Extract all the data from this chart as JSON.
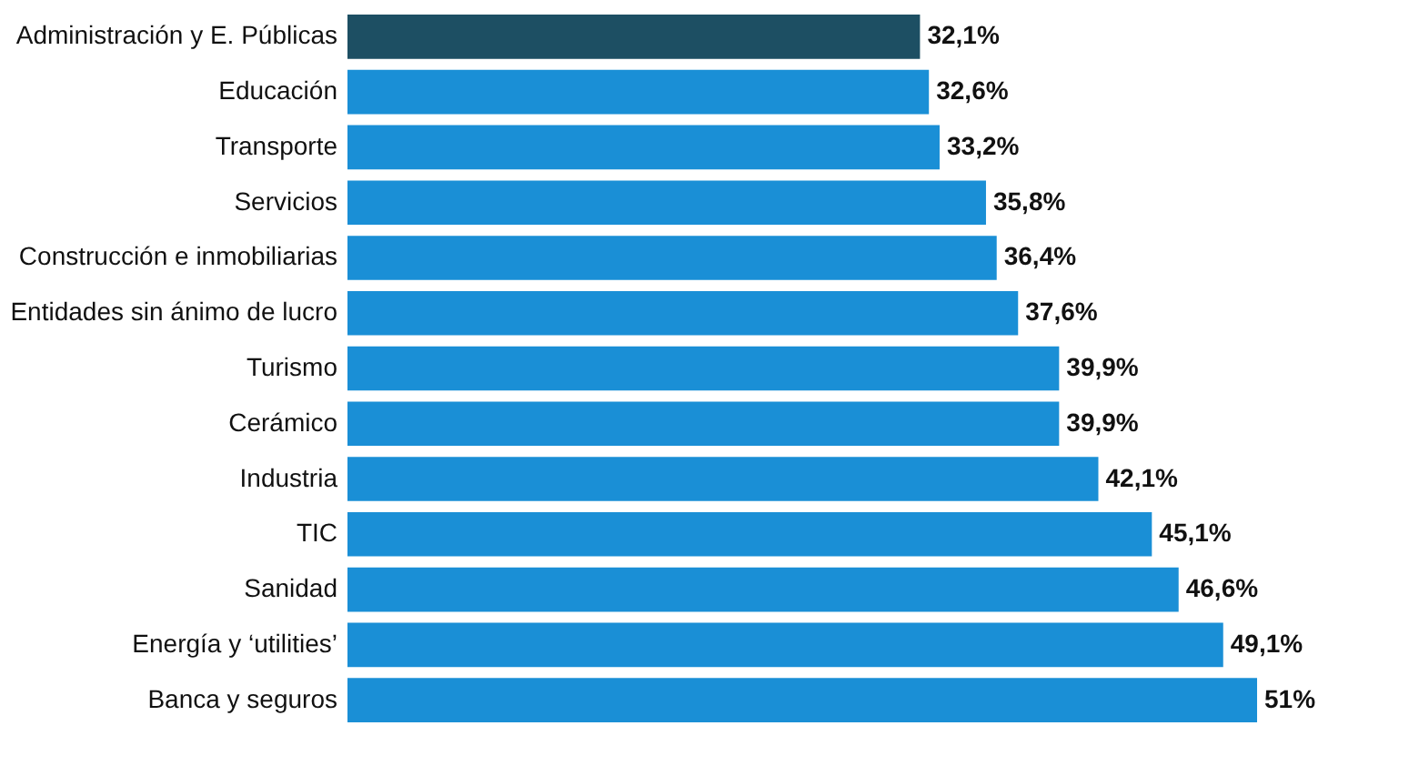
{
  "chart_data": {
    "type": "bar",
    "orientation": "horizontal",
    "categories": [
      "Administración y E. Públicas",
      "Educación",
      "Transporte",
      "Servicios",
      "Construcción e inmobiliarias",
      "Entidades sin ánimo de lucro",
      "Turismo",
      "Cerámico",
      "Industria",
      "TIC",
      "Sanidad",
      "Energía y ‘utilities’",
      "Banca y seguros"
    ],
    "values": [
      32.1,
      32.6,
      33.2,
      35.8,
      36.4,
      37.6,
      39.9,
      39.9,
      42.1,
      45.1,
      46.6,
      49.1,
      51
    ],
    "colors": [
      "#1d4f63",
      "#1a8fd6",
      "#1a8fd6",
      "#1a8fd6",
      "#1a8fd6",
      "#1a8fd6",
      "#1a8fd6",
      "#1a8fd6",
      "#1a8fd6",
      "#1a8fd6",
      "#1a8fd6",
      "#1a8fd6",
      "#1a8fd6"
    ],
    "value_labels": [
      "32,1%",
      "32,6%",
      "33,2%",
      "35,8%",
      "36,4%",
      "37,6%",
      "39,9%",
      "39,9%",
      "42,1%",
      "45,1%",
      "46,6%",
      "49,1%",
      "51%"
    ]
  }
}
